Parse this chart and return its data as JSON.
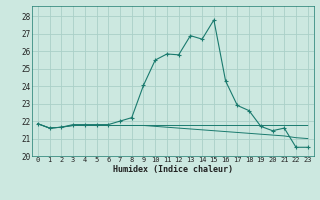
{
  "xlabel": "Humidex (Indice chaleur)",
  "background_color": "#cce8e0",
  "grid_color": "#aad0c8",
  "line_color": "#1a7a6e",
  "xlim": [
    -0.5,
    23.5
  ],
  "ylim": [
    20,
    28.6
  ],
  "yticks": [
    20,
    21,
    22,
    23,
    24,
    25,
    26,
    27,
    28
  ],
  "xticks": [
    0,
    1,
    2,
    3,
    4,
    5,
    6,
    7,
    8,
    9,
    10,
    11,
    12,
    13,
    14,
    15,
    16,
    17,
    18,
    19,
    20,
    21,
    22,
    23
  ],
  "series1_x": [
    0,
    1,
    2,
    3,
    4,
    5,
    6,
    7,
    8,
    9,
    10,
    11,
    12,
    13,
    14,
    15,
    16,
    17,
    18,
    19,
    20,
    21,
    22,
    23
  ],
  "series1_y": [
    21.85,
    21.6,
    21.65,
    21.8,
    21.8,
    21.8,
    21.8,
    22.0,
    22.2,
    24.05,
    25.5,
    25.85,
    25.8,
    26.9,
    26.7,
    27.8,
    24.3,
    22.9,
    22.6,
    21.7,
    21.45,
    21.6,
    20.5,
    20.5
  ],
  "series2_x": [
    0,
    1,
    2,
    3,
    4,
    5,
    6,
    7,
    8,
    9,
    10,
    11,
    12,
    13,
    14,
    15,
    16,
    17,
    18,
    19,
    20,
    21,
    22,
    23
  ],
  "series2_y": [
    21.85,
    21.6,
    21.65,
    21.75,
    21.75,
    21.75,
    21.75,
    21.75,
    21.75,
    21.75,
    21.7,
    21.65,
    21.6,
    21.55,
    21.5,
    21.45,
    21.4,
    21.35,
    21.3,
    21.25,
    21.2,
    21.15,
    21.05,
    21.0
  ],
  "series3_x": [
    0,
    1,
    2,
    3,
    4,
    5,
    6,
    7,
    8,
    9,
    10,
    11,
    12,
    13,
    14,
    15,
    16,
    17,
    18,
    19,
    20,
    21,
    22,
    23
  ],
  "series3_y": [
    21.85,
    21.6,
    21.65,
    21.75,
    21.75,
    21.75,
    21.75,
    21.75,
    21.75,
    21.75,
    21.75,
    21.75,
    21.75,
    21.75,
    21.75,
    21.75,
    21.75,
    21.75,
    21.75,
    21.75,
    21.75,
    21.75,
    21.75,
    21.75
  ]
}
